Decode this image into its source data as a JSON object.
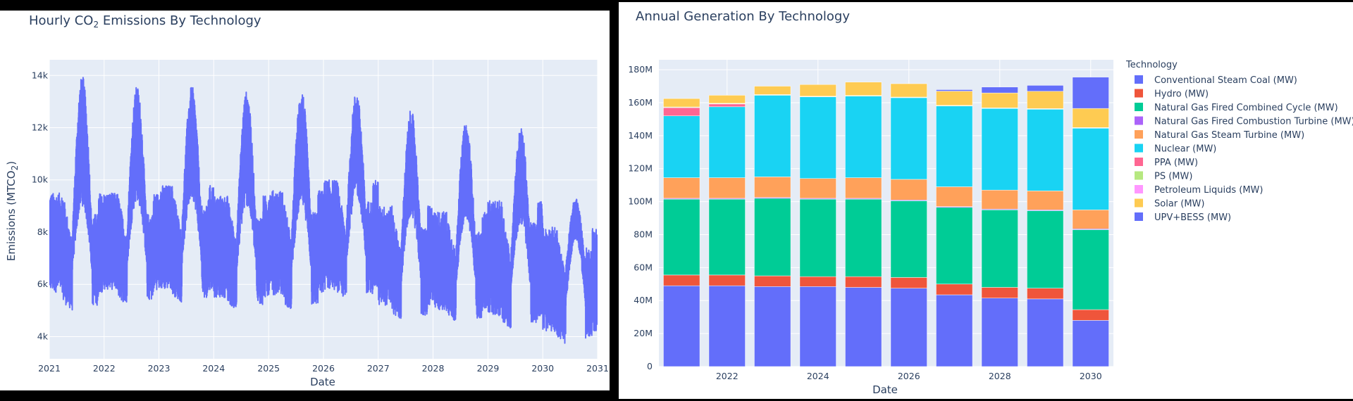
{
  "colors": {
    "plot_bg": "#e5ecf6",
    "grid": "#ffffff",
    "line": "#636efa"
  },
  "left_chart": {
    "title_main": "Hourly CO",
    "title_sub": "2",
    "title_tail": " Emissions By Technology",
    "xlabel": "Date",
    "ylabel_main": "Emissions (MTCO",
    "ylabel_sub": "2",
    "ylabel_tail": ")"
  },
  "right_chart": {
    "title": "Annual Generation By Technology",
    "xlabel": "Date",
    "legend_title": "Technology"
  },
  "chart_data": [
    {
      "type": "line",
      "title": "Hourly CO2 Emissions By Technology",
      "xlabel": "Date",
      "ylabel": "Emissions (MTCO2)",
      "xlim": [
        "2021-01-01",
        "2031-01-01"
      ],
      "ylim": [
        3150,
        14600
      ],
      "x_ticks": [
        "2021",
        "2022",
        "2023",
        "2024",
        "2025",
        "2026",
        "2027",
        "2028",
        "2029",
        "2030",
        "2031"
      ],
      "y_ticks": [
        4000,
        6000,
        8000,
        10000,
        12000,
        14000
      ],
      "y_tick_labels": [
        "4k",
        "6k",
        "8k",
        "10k",
        "12k",
        "14k"
      ],
      "grid": true,
      "series": [
        {
          "color": "#636efa",
          "envelope_by_year": [
            {
              "year": 2021,
              "winter_low": 5700,
              "winter_high": 9500,
              "spring_low": 5000,
              "summer_high": 14000
            },
            {
              "year": 2022,
              "winter_low": 5800,
              "winter_high": 9500,
              "spring_low": 5200,
              "summer_high": 13600
            },
            {
              "year": 2023,
              "winter_low": 5800,
              "winter_high": 9800,
              "spring_low": 5300,
              "summer_high": 13600
            },
            {
              "year": 2024,
              "winter_low": 5500,
              "winter_high": 9400,
              "spring_low": 5000,
              "summer_high": 13400
            },
            {
              "year": 2025,
              "winter_low": 5600,
              "winter_high": 9600,
              "spring_low": 5000,
              "summer_high": 13500
            },
            {
              "year": 2026,
              "winter_low": 5800,
              "winter_high": 10000,
              "spring_low": 5400,
              "summer_high": 13400
            },
            {
              "year": 2027,
              "winter_low": 5200,
              "winter_high": 9000,
              "spring_low": 4600,
              "summer_high": 12700
            },
            {
              "year": 2028,
              "winter_low": 5000,
              "winter_high": 8800,
              "spring_low": 4500,
              "summer_high": 12200
            },
            {
              "year": 2029,
              "winter_low": 4800,
              "winter_high": 9200,
              "spring_low": 4300,
              "summer_high": 12000
            },
            {
              "year": 2030,
              "winter_low": 4200,
              "winter_high": 8200,
              "spring_low": 3700,
              "summer_high": 9300
            }
          ]
        }
      ]
    },
    {
      "type": "bar",
      "stacked": true,
      "title": "Annual Generation By Technology",
      "xlabel": "Date",
      "ylabel": "",
      "categories": [
        2021,
        2022,
        2023,
        2024,
        2025,
        2026,
        2027,
        2028,
        2029,
        2030
      ],
      "x_ticks": [
        "2022",
        "2024",
        "2026",
        "2028",
        "2030"
      ],
      "ylim": [
        0,
        186000000
      ],
      "y_ticks": [
        0,
        20000000,
        40000000,
        60000000,
        80000000,
        100000000,
        120000000,
        140000000,
        160000000,
        180000000
      ],
      "y_tick_labels": [
        "0",
        "20M",
        "40M",
        "60M",
        "80M",
        "100M",
        "120M",
        "140M",
        "160M",
        "180M"
      ],
      "legend_title": "Technology",
      "legend_position": "right",
      "grid": true,
      "series": [
        {
          "name": "Conventional Steam Coal (MW)",
          "color": "#636efa",
          "values": [
            49000000,
            49000000,
            48500000,
            48500000,
            48000000,
            47500000,
            43500000,
            41500000,
            41000000,
            28000000
          ]
        },
        {
          "name": "Hydro (MW)",
          "color": "#ef553b",
          "values": [
            6500000,
            6500000,
            6500000,
            6000000,
            6500000,
            6500000,
            6500000,
            6500000,
            6500000,
            6500000
          ]
        },
        {
          "name": "Natural Gas Fired Combined Cycle (MW)",
          "color": "#00cc96",
          "values": [
            46000000,
            46000000,
            47000000,
            47000000,
            47000000,
            46500000,
            46500000,
            47000000,
            47000000,
            48500000
          ]
        },
        {
          "name": "Natural Gas Fired Combustion Turbine (MW)",
          "color": "#ab63fa",
          "values": [
            500000,
            500000,
            500000,
            500000,
            500000,
            500000,
            500000,
            500000,
            500000,
            500000
          ]
        },
        {
          "name": "Natural Gas Steam Turbine (MW)",
          "color": "#ffa15a",
          "values": [
            12500000,
            12500000,
            12500000,
            12000000,
            12500000,
            12500000,
            12000000,
            11500000,
            11500000,
            11500000
          ]
        },
        {
          "name": "Nuclear (MW)",
          "color": "#19d3f3",
          "values": [
            37500000,
            43000000,
            49500000,
            49500000,
            49500000,
            49500000,
            49000000,
            49500000,
            49500000,
            49500000
          ]
        },
        {
          "name": "PPA (MW)",
          "color": "#ff6692",
          "values": [
            5000000,
            1700000,
            0,
            0,
            0,
            0,
            0,
            0,
            0,
            0
          ]
        },
        {
          "name": "PS (MW)",
          "color": "#b6e880",
          "values": [
            300000,
            300000,
            300000,
            300000,
            300000,
            300000,
            300000,
            300000,
            300000,
            300000
          ]
        },
        {
          "name": "Petroleum Liquids (MW)",
          "color": "#ff97ff",
          "values": [
            100000,
            100000,
            100000,
            100000,
            100000,
            100000,
            100000,
            100000,
            100000,
            100000
          ]
        },
        {
          "name": "Solar (MW)",
          "color": "#fecb52",
          "values": [
            5100000,
            4900000,
            5100000,
            7100000,
            8100000,
            8100000,
            8600000,
            9000000,
            10500000,
            11600000
          ]
        },
        {
          "name": "UPV+BESS (MW)",
          "color": "#636efa",
          "values": [
            0,
            0,
            0,
            0,
            0,
            0,
            900000,
            3600000,
            3600000,
            19000000
          ]
        }
      ]
    }
  ]
}
